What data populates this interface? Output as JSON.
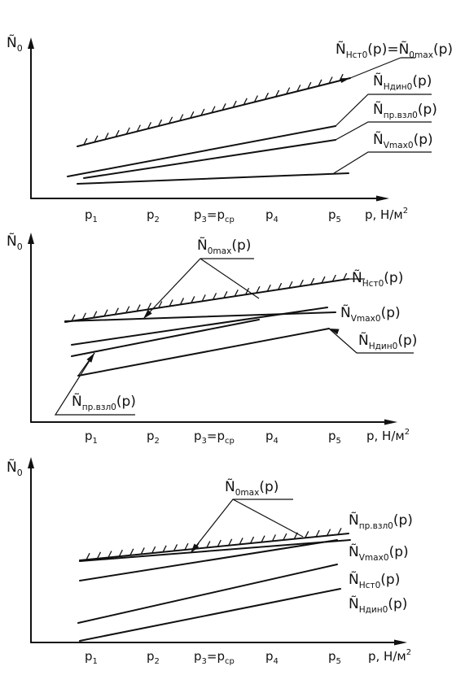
{
  "axis": {
    "y_label": "Ñ",
    "y_sub": "0",
    "x_label": "p, Н/м",
    "x_sup": "2"
  },
  "tick_labels": [
    {
      "main": "p",
      "sub": "1",
      "tail": ""
    },
    {
      "main": "p",
      "sub": "2",
      "tail": ""
    },
    {
      "main": "p",
      "sub": "3",
      "tail": "=p",
      "sub2": "ср"
    },
    {
      "main": "p",
      "sub": "4",
      "tail": ""
    },
    {
      "main": "p",
      "sub": "5",
      "tail": ""
    }
  ],
  "panels": [
    {
      "id": "top",
      "labels": [
        {
          "key": "nst_eq_n0max",
          "parts": [
            {
              "t": "Ñ"
            },
            {
              "s": "Нст0"
            },
            {
              "t": "(p)=Ñ"
            },
            {
              "s": "0max"
            },
            {
              "t": "(p)"
            }
          ]
        },
        {
          "key": "ndin",
          "parts": [
            {
              "t": "Ñ"
            },
            {
              "s": "Ндин0"
            },
            {
              "t": "(p)"
            }
          ]
        },
        {
          "key": "npr",
          "parts": [
            {
              "t": "Ñ"
            },
            {
              "s": "пр.взл0"
            },
            {
              "t": "(p)"
            }
          ]
        },
        {
          "key": "nvmax",
          "parts": [
            {
              "t": "Ñ"
            },
            {
              "s": "Vmax0"
            },
            {
              "t": "(p)"
            }
          ]
        }
      ]
    },
    {
      "id": "middle",
      "labels": [
        {
          "key": "n0max",
          "parts": [
            {
              "t": "Ñ"
            },
            {
              "s": "0max"
            },
            {
              "t": "(p)"
            }
          ]
        },
        {
          "key": "nst",
          "parts": [
            {
              "t": "Ñ"
            },
            {
              "s": "Нст0"
            },
            {
              "t": "(p)"
            }
          ]
        },
        {
          "key": "nvmax",
          "parts": [
            {
              "t": "Ñ"
            },
            {
              "s": "Vmax0"
            },
            {
              "t": "(p)"
            }
          ]
        },
        {
          "key": "ndin",
          "parts": [
            {
              "t": "Ñ"
            },
            {
              "s": "Ндин0"
            },
            {
              "t": "(p)"
            }
          ]
        },
        {
          "key": "npr",
          "parts": [
            {
              "t": "Ñ"
            },
            {
              "s": "пр.взл0"
            },
            {
              "t": "(p)"
            }
          ]
        }
      ]
    },
    {
      "id": "bottom",
      "labels": [
        {
          "key": "n0max",
          "parts": [
            {
              "t": "Ñ"
            },
            {
              "s": "0max"
            },
            {
              "t": "(p)"
            }
          ]
        },
        {
          "key": "npr",
          "parts": [
            {
              "t": "Ñ"
            },
            {
              "s": "пр.взл0"
            },
            {
              "t": "(p)"
            }
          ]
        },
        {
          "key": "nvmax",
          "parts": [
            {
              "t": "Ñ"
            },
            {
              "s": "Vmax0"
            },
            {
              "t": "(p)"
            }
          ]
        },
        {
          "key": "nst",
          "parts": [
            {
              "t": "Ñ"
            },
            {
              "s": "Нст0"
            },
            {
              "t": "(p)"
            }
          ]
        },
        {
          "key": "ndin",
          "parts": [
            {
              "t": "Ñ"
            },
            {
              "s": "Ндин0"
            },
            {
              "t": "(p)"
            }
          ]
        }
      ]
    }
  ]
}
